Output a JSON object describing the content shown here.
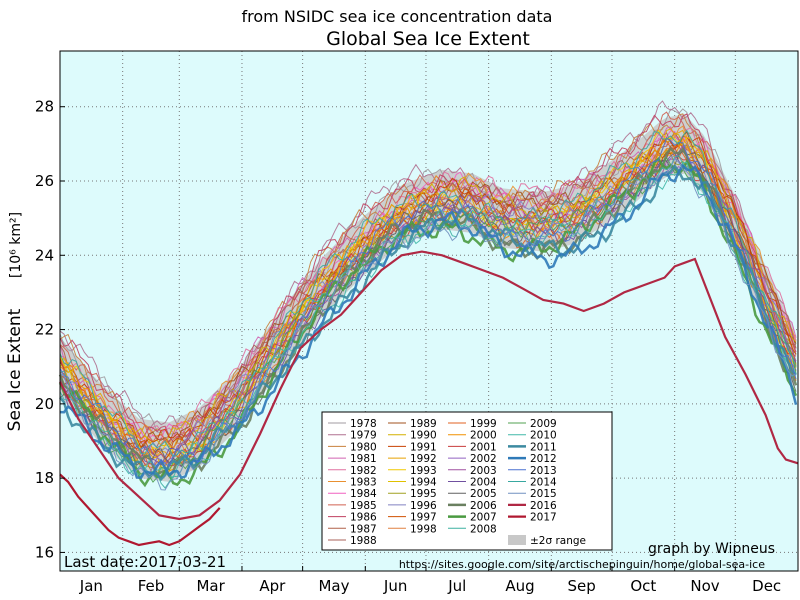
{
  "chart_data": {
    "type": "line",
    "subtitle": "from NSIDC sea ice concentration data",
    "title": "Global Sea Ice Extent",
    "ylabel": "Sea Ice Extent",
    "ylabel_unit": "[10⁶ km²]",
    "ylim": [
      15.5,
      29.5
    ],
    "yticks": [
      16,
      18,
      20,
      22,
      24,
      26,
      28
    ],
    "xticks": [
      "Jan",
      "Feb",
      "Mar",
      "Apr",
      "May",
      "Jun",
      "Jul",
      "Aug",
      "Sep",
      "Oct",
      "Nov",
      "Dec"
    ],
    "x_unit": "day of year",
    "xlim": [
      1,
      366
    ],
    "grid": true,
    "background": "#ddfbfc",
    "last_date": "Last date:2017-03-21",
    "credit": "graph by Wipneus",
    "url": "https://sites.google.com/site/arctischepinguin/home/global-sea-ice",
    "legend": {
      "placement": "lower-center",
      "range_label": "±2σ range",
      "range_color": "#c8c8c8"
    },
    "mean_curve": {
      "x": [
        1,
        20,
        40,
        55,
        70,
        90,
        110,
        130,
        150,
        170,
        190,
        205,
        220,
        240,
        255,
        270,
        285,
        300,
        310,
        320,
        335,
        350,
        366
      ],
      "y": [
        21.0,
        19.8,
        18.8,
        18.7,
        19.1,
        20.2,
        21.7,
        23.1,
        24.2,
        25.1,
        25.5,
        25.4,
        25.0,
        24.9,
        25.1,
        25.6,
        26.2,
        26.9,
        27.0,
        26.4,
        24.8,
        22.9,
        21.0
      ]
    },
    "range_sigma": 0.8,
    "series": [
      {
        "name": "1978",
        "color": "#a09ba0",
        "width": 1,
        "offset": 0.6,
        "phase": 0.3
      },
      {
        "name": "1979",
        "color": "#b07090",
        "width": 1,
        "offset": 0.9,
        "phase": 1.1
      },
      {
        "name": "1980",
        "color": "#c8803c",
        "width": 1,
        "offset": 0.7,
        "phase": 2.0
      },
      {
        "name": "1981",
        "color": "#d060b0",
        "width": 1,
        "offset": 0.5,
        "phase": 2.9
      },
      {
        "name": "1982",
        "color": "#e070a0",
        "width": 1,
        "offset": 0.6,
        "phase": 3.7
      },
      {
        "name": "1983",
        "color": "#e89030",
        "width": 1,
        "offset": 0.4,
        "phase": 4.4
      },
      {
        "name": "1984",
        "color": "#f060c0",
        "width": 1,
        "offset": 0.3,
        "phase": 5.1
      },
      {
        "name": "1985",
        "color": "#d06050",
        "width": 1,
        "offset": 0.5,
        "phase": 0.8
      },
      {
        "name": "1986",
        "color": "#c04060",
        "width": 1,
        "offset": 0.7,
        "phase": 1.6
      },
      {
        "name": "1987",
        "color": "#b06048",
        "width": 1,
        "offset": 0.2,
        "phase": 2.5
      },
      {
        "name": "1988",
        "color": "#a86058",
        "width": 1,
        "offset": 0.4,
        "phase": 3.2
      },
      {
        "name": "1989",
        "color": "#a0521c",
        "width": 1,
        "offset": 0.3,
        "phase": 4.0
      },
      {
        "name": "1990",
        "color": "#d4b000",
        "width": 1,
        "offset": 0.2,
        "phase": 4.8
      },
      {
        "name": "1991",
        "color": "#c84000",
        "width": 1,
        "offset": 0.1,
        "phase": 5.5
      },
      {
        "name": "1992",
        "color": "#e8a000",
        "width": 1,
        "offset": 0.0,
        "phase": 0.5
      },
      {
        "name": "1993",
        "color": "#f0c800",
        "width": 1,
        "offset": 0.1,
        "phase": 1.3
      },
      {
        "name": "1994",
        "color": "#e0c000",
        "width": 1,
        "offset": -0.1,
        "phase": 2.2
      },
      {
        "name": "1995",
        "color": "#a0a020",
        "width": 1,
        "offset": -0.2,
        "phase": 3.0
      },
      {
        "name": "1996",
        "color": "#8080c0",
        "width": 1,
        "offset": 0.0,
        "phase": 3.9
      },
      {
        "name": "1997",
        "color": "#d05000",
        "width": 1,
        "offset": -0.1,
        "phase": 4.6
      },
      {
        "name": "1998",
        "color": "#e08040",
        "width": 1,
        "offset": -0.2,
        "phase": 5.4
      },
      {
        "name": "1999",
        "color": "#e06020",
        "width": 1,
        "offset": -0.3,
        "phase": 0.9
      },
      {
        "name": "2000",
        "color": "#f09000",
        "width": 1,
        "offset": -0.1,
        "phase": 1.8
      },
      {
        "name": "2001",
        "color": "#c83c3c",
        "width": 1,
        "offset": -0.2,
        "phase": 2.6
      },
      {
        "name": "2002",
        "color": "#9060c0",
        "width": 1,
        "offset": -0.3,
        "phase": 3.5
      },
      {
        "name": "2003",
        "color": "#a050a0",
        "width": 1,
        "offset": -0.2,
        "phase": 4.3
      },
      {
        "name": "2004",
        "color": "#7050a0",
        "width": 1,
        "offset": -0.4,
        "phase": 5.0
      },
      {
        "name": "2005",
        "color": "#606060",
        "width": 1,
        "offset": -0.5,
        "phase": 5.8
      },
      {
        "name": "2006",
        "color": "#6a8060",
        "width": 2.5,
        "offset": -0.6,
        "phase": 0.4
      },
      {
        "name": "2007",
        "color": "#4a9a40",
        "width": 2.5,
        "offset": -0.7,
        "phase": 1.4
      },
      {
        "name": "2008",
        "color": "#3cb0a0",
        "width": 1,
        "offset": -0.5,
        "phase": 2.3
      },
      {
        "name": "2009",
        "color": "#50a050",
        "width": 1,
        "offset": -0.4,
        "phase": 3.1
      },
      {
        "name": "2010",
        "color": "#40b8a8",
        "width": 1,
        "offset": -0.6,
        "phase": 4.1
      },
      {
        "name": "2011",
        "color": "#3c8aa0",
        "width": 2.5,
        "offset": -0.8,
        "phase": 4.9
      },
      {
        "name": "2012",
        "color": "#2f7ab8",
        "width": 2.5,
        "offset": -0.9,
        "phase": 5.7
      },
      {
        "name": "2013",
        "color": "#4a70d0",
        "width": 1,
        "offset": -0.3,
        "phase": 0.6
      },
      {
        "name": "2014",
        "color": "#38a8a0",
        "width": 1,
        "offset": 0.2,
        "phase": 1.5
      },
      {
        "name": "2015",
        "color": "#7090c0",
        "width": 1,
        "offset": -0.6,
        "phase": 2.4
      },
      {
        "name": "2016",
        "color": "#b02844",
        "width": 2.2,
        "offset": -1.0,
        "phase": 3.3
      },
      {
        "name": "2017",
        "color": "#b01830",
        "width": 2.2,
        "offset": 0,
        "phase": 0
      }
    ],
    "series_2016": {
      "x": [
        1,
        10,
        20,
        30,
        40,
        50,
        60,
        70,
        80,
        90,
        100,
        110,
        120,
        130,
        140,
        150,
        160,
        170,
        180,
        190,
        200,
        210,
        220,
        230,
        240,
        250,
        260,
        270,
        280,
        290,
        300,
        305,
        310,
        315,
        320,
        330,
        340,
        350,
        356,
        360,
        366
      ],
      "y": [
        20.6,
        19.6,
        18.8,
        18.0,
        17.5,
        17.0,
        16.9,
        17.0,
        17.4,
        18.1,
        19.2,
        20.4,
        21.5,
        22.0,
        22.4,
        23.0,
        23.6,
        24.0,
        24.1,
        24.0,
        23.8,
        23.6,
        23.4,
        23.1,
        22.8,
        22.7,
        22.5,
        22.7,
        23.0,
        23.2,
        23.4,
        23.7,
        23.8,
        23.9,
        23.2,
        21.8,
        20.8,
        19.7,
        18.8,
        18.5,
        18.4
      ]
    },
    "series_2017": {
      "x": [
        1,
        5,
        10,
        15,
        20,
        25,
        30,
        35,
        40,
        45,
        50,
        55,
        60,
        65,
        70,
        75,
        80
      ],
      "y": [
        18.1,
        17.9,
        17.5,
        17.2,
        16.9,
        16.6,
        16.4,
        16.3,
        16.2,
        16.25,
        16.3,
        16.2,
        16.3,
        16.5,
        16.7,
        16.9,
        17.2
      ]
    }
  }
}
